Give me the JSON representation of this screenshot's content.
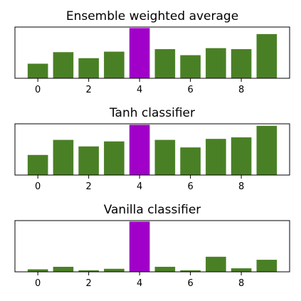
{
  "chart_data": [
    {
      "type": "bar",
      "title": "Ensemble weighted average",
      "categories": [
        0,
        1,
        2,
        3,
        4,
        5,
        6,
        7,
        8,
        9
      ],
      "values": [
        0.29,
        0.52,
        0.4,
        0.53,
        1.0,
        0.58,
        0.46,
        0.6,
        0.58,
        0.88
      ],
      "highlight_index": 4,
      "xticks": [
        "0",
        "2",
        "4",
        "6",
        "8"
      ],
      "xlim": [
        -0.9,
        9.9
      ],
      "ylim": [
        0,
        1.02
      ],
      "yticks_visible": false,
      "grid": false
    },
    {
      "type": "bar",
      "title": "Tanh classifier",
      "categories": [
        0,
        1,
        2,
        3,
        4,
        5,
        6,
        7,
        8,
        9
      ],
      "values": [
        0.4,
        0.7,
        0.57,
        0.67,
        1.0,
        0.7,
        0.55,
        0.72,
        0.75,
        0.98
      ],
      "highlight_index": 4,
      "xticks": [
        "0",
        "2",
        "4",
        "6",
        "8"
      ],
      "xlim": [
        -0.9,
        9.9
      ],
      "ylim": [
        0,
        1.02
      ],
      "yticks_visible": false,
      "grid": false
    },
    {
      "type": "bar",
      "title": "Vanilla classifier",
      "categories": [
        0,
        1,
        2,
        3,
        4,
        5,
        6,
        7,
        8,
        9
      ],
      "values": [
        0.05,
        0.1,
        0.03,
        0.06,
        1.0,
        0.1,
        0.03,
        0.3,
        0.07,
        0.24
      ],
      "highlight_index": 4,
      "xticks": [
        "0",
        "2",
        "4",
        "6",
        "8"
      ],
      "xlim": [
        -0.9,
        9.9
      ],
      "ylim": [
        0,
        1.02
      ],
      "yticks_visible": false,
      "grid": false
    }
  ],
  "colors": {
    "bar": "#4a8025",
    "highlight": "#a100c8",
    "axis": "#000000",
    "background": "#ffffff"
  }
}
